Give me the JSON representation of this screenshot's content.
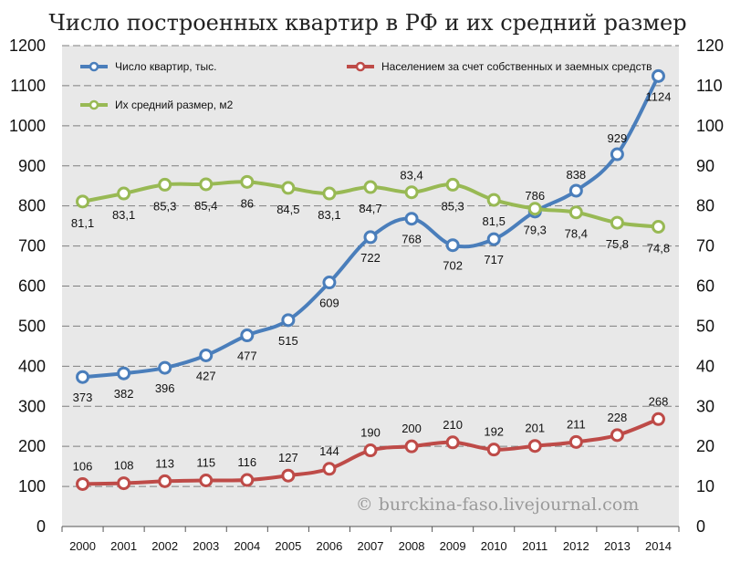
{
  "chart_data": {
    "type": "line",
    "title": "Число построенных квартир в РФ и их средний размер",
    "categories": [
      "2000",
      "2001",
      "2002",
      "2003",
      "2004",
      "2005",
      "2006",
      "2007",
      "2008",
      "2009",
      "2010",
      "2011",
      "2012",
      "2013",
      "2014"
    ],
    "y_left": {
      "min": 0,
      "max": 1200,
      "ticks": [
        0,
        100,
        200,
        300,
        400,
        500,
        600,
        700,
        800,
        900,
        1000,
        1100,
        1200
      ]
    },
    "y_right": {
      "min": 0,
      "max": 120,
      "ticks": [
        0,
        10,
        20,
        30,
        40,
        50,
        60,
        70,
        80,
        90,
        100,
        110,
        120
      ]
    },
    "grid": true,
    "legend_position": "top-left",
    "series": [
      {
        "name": "Число квартир, тыс.",
        "axis": "left",
        "color": "#4a7ebb",
        "values": [
          373,
          382,
          396,
          427,
          477,
          515,
          609,
          722,
          768,
          702,
          717,
          786,
          838,
          929,
          1124
        ],
        "labels": [
          "373",
          "382",
          "396",
          "427",
          "477",
          "515",
          "609",
          "722",
          "768",
          "702",
          "717",
          "786",
          "838",
          "929",
          "1124"
        ]
      },
      {
        "name": "Населением за счет собственных  и заемных средств",
        "axis": "left",
        "color": "#be4b48",
        "values": [
          106,
          108,
          113,
          115,
          116,
          127,
          144,
          190,
          200,
          210,
          192,
          201,
          211,
          228,
          268
        ],
        "labels": [
          "106",
          "108",
          "113",
          "115",
          "116",
          "127",
          "144",
          "190",
          "200",
          "210",
          "192",
          "201",
          "211",
          "228",
          "268"
        ]
      },
      {
        "name": "Их средний размер, м2",
        "axis": "right",
        "color": "#98b954",
        "values": [
          81.1,
          83.1,
          85.3,
          85.4,
          86,
          84.5,
          83.1,
          84.7,
          83.4,
          85.3,
          81.5,
          79.3,
          78.4,
          75.8,
          74.8
        ],
        "labels": [
          "81,1",
          "83,1",
          "85,3",
          "85,4",
          "86",
          "84,5",
          "83,1",
          "84,7",
          "83,4",
          "85,3",
          "81,5",
          "79,3",
          "78,4",
          "75,8",
          "74,8"
        ]
      }
    ],
    "watermark": "© burckina-faso.livejournal.com"
  }
}
